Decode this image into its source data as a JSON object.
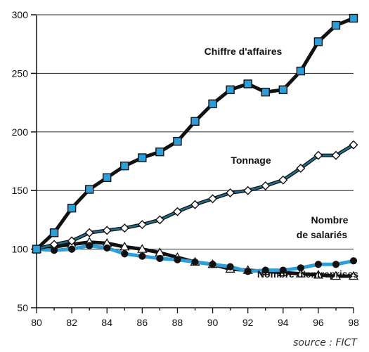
{
  "chart_data": {
    "type": "line",
    "x": [
      80,
      81,
      82,
      83,
      84,
      85,
      86,
      87,
      88,
      89,
      90,
      91,
      92,
      93,
      94,
      95,
      96,
      97,
      98
    ],
    "xticks": [
      "80",
      "82",
      "84",
      "86",
      "88",
      "90",
      "92",
      "94",
      "96",
      "98"
    ],
    "xtick_values": [
      80,
      82,
      84,
      86,
      88,
      90,
      92,
      94,
      96,
      98
    ],
    "yticks": [
      "50",
      "100",
      "150",
      "200",
      "250",
      "300"
    ],
    "ytick_values": [
      50,
      100,
      150,
      200,
      250,
      300
    ],
    "xlim": [
      80,
      98
    ],
    "ylim": [
      50,
      300
    ],
    "grid": "horizontal",
    "series": [
      {
        "name": "Chiffre d'affaires",
        "marker": "square",
        "line_color": "#111111",
        "marker_color": "#2e9ed8",
        "values": [
          100,
          114,
          135,
          151,
          161,
          171,
          178,
          183,
          192,
          209,
          224,
          236,
          241,
          234,
          236,
          252,
          277,
          291,
          297
        ]
      },
      {
        "name": "Tonnage",
        "marker": "diamond",
        "line_color": "#111111",
        "inner_color": "#1f6e8c",
        "marker_color": "#ffffff",
        "values": [
          100,
          104,
          107,
          114,
          116,
          118,
          121,
          125,
          132,
          138,
          143,
          148,
          150,
          154,
          159,
          169,
          180,
          180,
          189
        ]
      },
      {
        "name": "Nombre de salariés",
        "label_lines": [
          "Nombre",
          "de salariés"
        ],
        "marker": "circle",
        "line_color": "#2e9ed8",
        "marker_color": "#111111",
        "values": [
          100,
          99,
          100,
          103,
          101,
          96,
          94,
          92,
          91,
          89,
          87,
          85,
          81,
          82,
          82,
          84,
          87,
          87,
          90
        ]
      },
      {
        "name": "Nombre d'entreprises",
        "marker": "triangle",
        "line_color": "#111111",
        "marker_color": "#ffffff",
        "values": [
          100,
          102,
          104,
          106,
          105,
          102,
          100,
          97,
          93,
          89,
          87,
          83,
          82,
          81,
          80,
          79,
          78,
          77,
          77
        ]
      }
    ]
  },
  "source": "source : FICT"
}
